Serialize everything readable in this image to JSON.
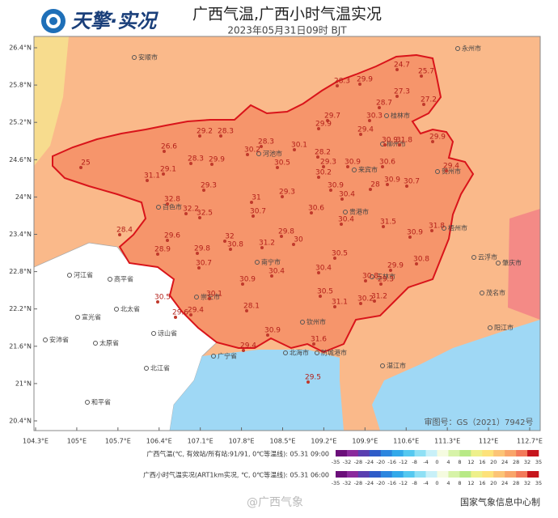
{
  "header": {
    "logo": "天擎·实况",
    "title": "广西气温,广西小时气温实况",
    "subtitle": "2023年05月31日09时 BJT"
  },
  "map": {
    "lat_ticks": [
      {
        "value": 26.4,
        "label": "26.4°N"
      },
      {
        "value": 25.8,
        "label": "25.8°N"
      },
      {
        "value": 25.2,
        "label": "25.2°N"
      },
      {
        "value": 24.6,
        "label": "24.6°N"
      },
      {
        "value": 24,
        "label": "24°N"
      },
      {
        "value": 23.4,
        "label": "23.4°N"
      },
      {
        "value": 22.8,
        "label": "22.8°N"
      },
      {
        "value": 22.2,
        "label": "22.2°N"
      },
      {
        "value": 21.6,
        "label": "21.6°N"
      },
      {
        "value": 21,
        "label": "21°N"
      },
      {
        "value": 20.4,
        "label": "20.4°N"
      }
    ],
    "lon_ticks": [
      {
        "value": 104.3,
        "label": "104.3°E"
      },
      {
        "value": 105,
        "label": "105°E"
      },
      {
        "value": 105.7,
        "label": "105.7°E"
      },
      {
        "value": 106.4,
        "label": "106.4°E"
      },
      {
        "value": 107.1,
        "label": "107.1°E"
      },
      {
        "value": 107.8,
        "label": "107.8°E"
      },
      {
        "value": 108.5,
        "label": "108.5°E"
      },
      {
        "value": 109.2,
        "label": "109.2°E"
      },
      {
        "value": 109.9,
        "label": "109.9°E"
      },
      {
        "value": 110.6,
        "label": "110.6°E"
      },
      {
        "value": 111.3,
        "label": "111.3°E"
      },
      {
        "value": 112,
        "label": "112°E"
      },
      {
        "value": 112.7,
        "label": "112.7°E"
      }
    ],
    "stations": [
      24.7,
      25.7,
      28.3,
      29.9,
      27.3,
      28.7,
      27.2,
      29.7,
      29.9,
      30.3,
      29.4,
      31.8,
      29.2,
      28.3,
      28.3,
      30.2,
      30.1,
      26.6,
      25,
      29.1,
      28.3,
      29.9,
      30.5,
      28.2,
      30.9,
      29.3,
      30.9,
      30.6,
      29.4,
      29.9,
      31.1,
      29.3,
      30.2,
      30.9,
      28,
      30.9,
      30.7,
      29.3,
      31,
      30.4,
      32.8,
      32.2,
      32.5,
      30.7,
      30.6,
      30.4,
      31.5,
      31.8,
      28.4,
      29.6,
      32,
      29.8,
      30,
      30.8,
      31.2,
      30.9,
      28.9,
      29.8,
      30.5,
      30.8,
      30.7,
      30.4,
      29.9,
      30.4,
      30.9,
      30.8,
      29.3,
      30.5,
      30.1,
      30.5,
      30.2,
      31.2,
      31.1,
      28.1,
      29.4,
      29.6,
      30.9,
      31.6,
      29.4,
      29.5
    ],
    "places": [
      "安顺市",
      "永州市",
      "河池市",
      "柳州市",
      "桂林市",
      "来宾市",
      "贺州市",
      "百色市",
      "贵港市",
      "梧州市",
      "南宁市",
      "玉林市",
      "崇左市",
      "云浮市",
      "肇庆市",
      "钦州市",
      "茂名市",
      "防城港市",
      "北海市",
      "阳江市",
      "湛江市",
      "河江省",
      "高平省",
      "北太省",
      "宣光省",
      "谅山省",
      "太原省",
      "安沛省",
      "北江省",
      "广宁省",
      "和平省"
    ],
    "credit": "审图号：GS（2021）7942号"
  },
  "legend": {
    "rows": [
      "广西气温(℃, 有效站/所有站:91/91, 0℃等温线): 05.31 09:00",
      "广西小时气温实况(ART1km实况, ℃, 0℃等温线): 05.31 06:00"
    ],
    "ticks": [
      -35,
      -32,
      -28,
      -24,
      -20,
      -16,
      -12,
      -8,
      -4,
      0,
      4,
      8,
      12,
      16,
      20,
      24,
      28,
      32,
      35
    ],
    "colors": [
      "#6b0f7a",
      "#8a2a9c",
      "#5a3fb0",
      "#2f5cc8",
      "#2c86df",
      "#33a9ea",
      "#55c8f0",
      "#8fe0f5",
      "#c8f0f8",
      "#f5fbe0",
      "#d7f3a8",
      "#b8e986",
      "#eef08a",
      "#fde27a",
      "#fcc476",
      "#f9a56a",
      "#f37a5a",
      "#c6161d"
    ]
  },
  "footer": {
    "watermark": "@广西气象",
    "producer": "国家气象信息中心制"
  }
}
